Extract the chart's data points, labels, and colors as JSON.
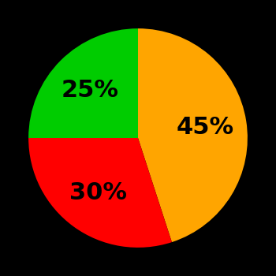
{
  "slices": [
    45,
    30,
    25
  ],
  "colors": [
    "#FFA500",
    "#FF0000",
    "#00CC00"
  ],
  "labels": [
    "45%",
    "30%",
    "25%"
  ],
  "background_color": "#000000",
  "text_color": "#000000",
  "font_size": 22,
  "font_weight": "bold",
  "startangle": 90,
  "label_distances": [
    0.62,
    0.62,
    0.62
  ]
}
